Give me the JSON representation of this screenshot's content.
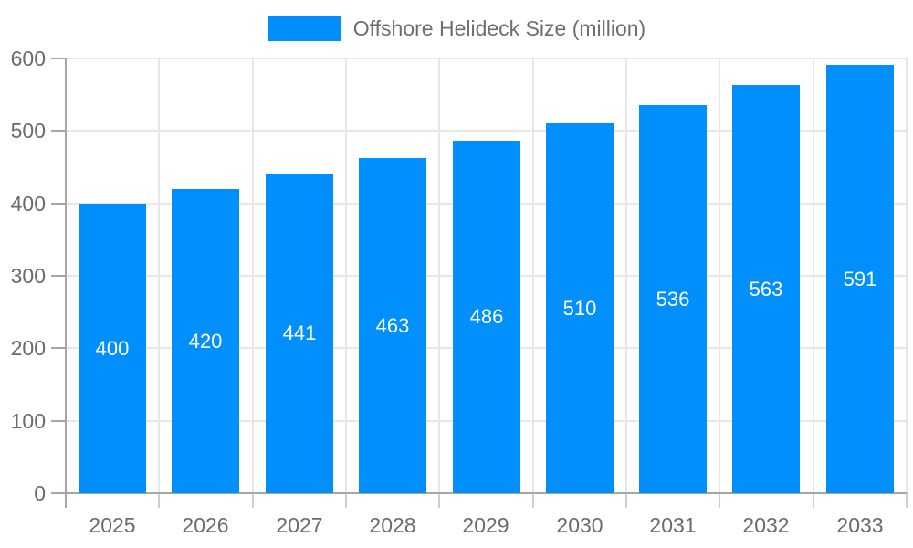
{
  "chart_data": {
    "type": "bar",
    "title": "",
    "legend_position": "top",
    "categories": [
      "2025",
      "2026",
      "2027",
      "2028",
      "2029",
      "2030",
      "2031",
      "2032",
      "2033"
    ],
    "series": [
      {
        "name": "Offshore Helideck Size (million)",
        "values": [
          400,
          420,
          441,
          463,
          486,
          510,
          536,
          563,
          591
        ]
      }
    ],
    "bar_labels": [
      "400",
      "420",
      "441",
      "463",
      "486",
      "510",
      "536",
      "563",
      "591"
    ],
    "ylim": [
      0,
      600
    ],
    "yticks": [
      0,
      100,
      200,
      300,
      400,
      500,
      600
    ],
    "grid": "both",
    "bar_labels_visible": true,
    "colors": {
      "bar": "#008FFB",
      "bar_label": "#FFFFFF",
      "axis_text": "#6B6B6B",
      "legend_text": "#6E6E6E",
      "grid_line": "#E7E7E7",
      "axis_line": "#A6A6A6",
      "minor_tick": "#CFCFCF"
    }
  }
}
